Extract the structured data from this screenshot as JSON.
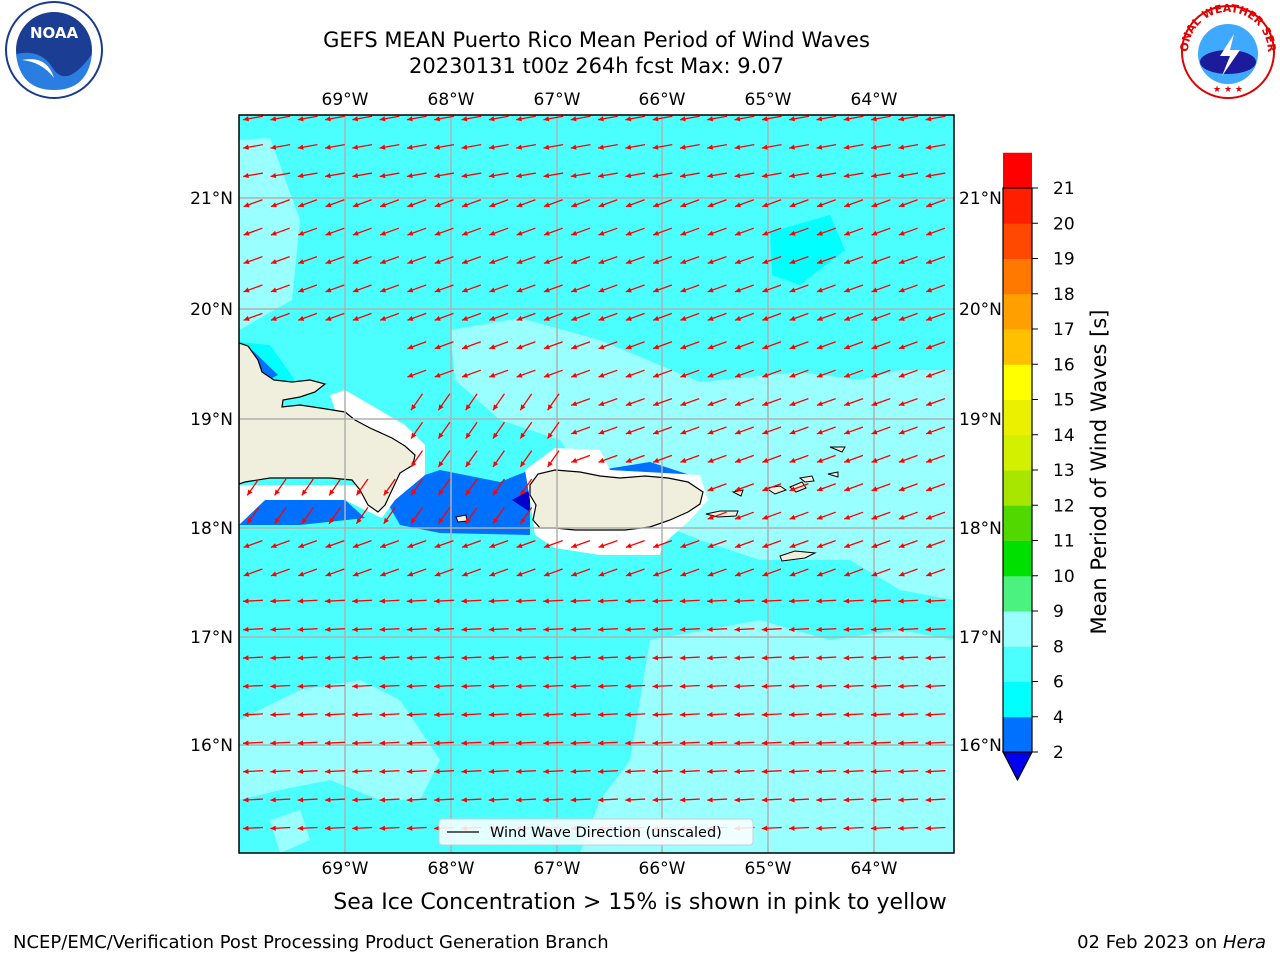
{
  "header": {
    "title_line1": "GEFS MEAN Puerto Rico Mean Period of Wind Waves",
    "title_line2": "20230131 t00z 264h fcst   Max: 9.07"
  },
  "map": {
    "lon_labels": [
      "69°W",
      "68°W",
      "67°W",
      "66°W",
      "65°W",
      "64°W"
    ],
    "lat_labels": [
      "21°N",
      "20°N",
      "19°N",
      "18°N",
      "17°N",
      "16°N"
    ],
    "lon_range": [
      -70.0,
      -63.25
    ],
    "lat_range": [
      15.05,
      21.75
    ],
    "legend_label": "Wind Wave Direction (unscaled)",
    "arrow_color": "#ff0000",
    "land_color": "#f0eedc"
  },
  "colorbar": {
    "label": "Mean Period of Wind Waves [s]",
    "ticks": [
      "2",
      "4",
      "6",
      "8",
      "9",
      "10",
      "11",
      "12",
      "13",
      "14",
      "15",
      "16",
      "17",
      "18",
      "19",
      "20",
      "21"
    ],
    "colors": [
      "#0000ee",
      "#0070ff",
      "#00ffff",
      "#4cffff",
      "#99ffff",
      "#4cf27f",
      "#00e000",
      "#50d800",
      "#a8e600",
      "#d2f000",
      "#eaf000",
      "#ffff00",
      "#ffc000",
      "#ffa000",
      "#ff7800",
      "#ff4800",
      "#ff1e00",
      "#ff0000"
    ]
  },
  "notes": {
    "sea_ice": "Sea Ice Concentration > 15% is shown in pink to yellow"
  },
  "footer": {
    "left": "NCEP/EMC/Verification Post Processing Product Generation Branch",
    "right_prefix": "02 Feb 2023 on ",
    "right_host": "Hera"
  },
  "logos": {
    "noaa_text": "NOAA",
    "nws_text": "NATIONAL WEATHER SERVICE"
  }
}
